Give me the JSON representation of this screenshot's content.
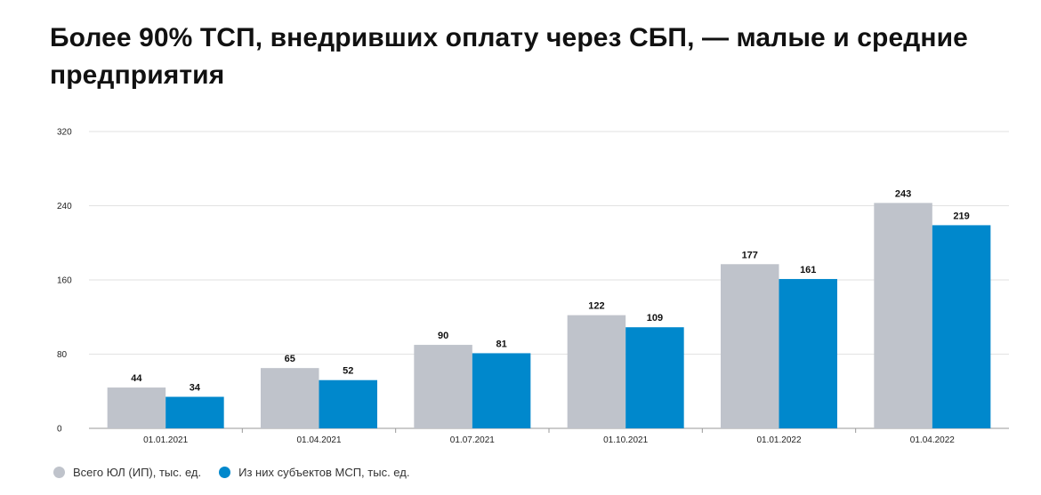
{
  "title": "Более 90% ТСП, внедривших оплату через СБП, — малые и средние предприятия",
  "colors": {
    "total": "#bfc3cb",
    "msp": "#0088cc",
    "grid": "#e2e2e2",
    "axis": "#999999"
  },
  "chart_data": {
    "type": "bar",
    "categories": [
      "01.01.2021",
      "01.04.2021",
      "01.07.2021",
      "01.10.2021",
      "01.01.2022",
      "01.04.2022"
    ],
    "series": [
      {
        "name": "Всего ЮЛ (ИП), тыс. ед.",
        "values": [
          44,
          65,
          90,
          122,
          177,
          243
        ]
      },
      {
        "name": "Из них субъектов МСП, тыс. ед.",
        "values": [
          34,
          52,
          81,
          109,
          161,
          219
        ]
      }
    ],
    "ylim": [
      0,
      320
    ],
    "yticks": [
      0,
      80,
      160,
      240,
      320
    ],
    "grid": true,
    "legend": "bottom-left"
  }
}
